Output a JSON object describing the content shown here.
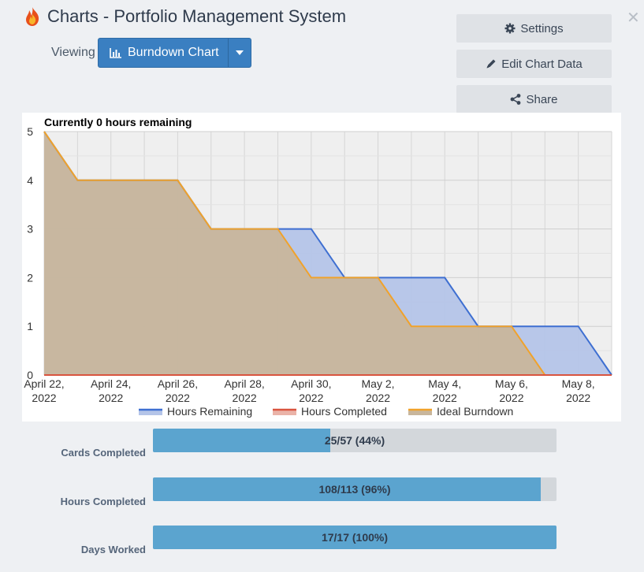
{
  "header": {
    "title": "Charts - Portfolio Management System",
    "viewing_label": "Viewing",
    "chart_select": "Burndown Chart"
  },
  "actions": {
    "settings": "Settings",
    "edit": "Edit Chart Data",
    "share": "Share"
  },
  "chart_data": {
    "type": "area",
    "title": "Currently 0 hours remaining",
    "x": [
      0,
      1,
      2,
      3,
      4,
      5,
      6,
      7,
      8,
      9,
      10,
      11,
      12,
      13,
      14,
      15,
      16,
      17
    ],
    "x_tick_labels": [
      {
        "at": 0,
        "line1": "April 22,",
        "line2": "2022"
      },
      {
        "at": 2,
        "line1": "April 24,",
        "line2": "2022"
      },
      {
        "at": 4,
        "line1": "April 26,",
        "line2": "2022"
      },
      {
        "at": 6,
        "line1": "April 28,",
        "line2": "2022"
      },
      {
        "at": 8,
        "line1": "April 30,",
        "line2": "2022"
      },
      {
        "at": 10,
        "line1": "May 2,",
        "line2": "2022"
      },
      {
        "at": 12,
        "line1": "May 4,",
        "line2": "2022"
      },
      {
        "at": 14,
        "line1": "May 6,",
        "line2": "2022"
      },
      {
        "at": 16,
        "line1": "May 8,",
        "line2": "2022"
      }
    ],
    "y_ticks": [
      0,
      1,
      2,
      3,
      4,
      5
    ],
    "ylim": [
      0,
      5
    ],
    "series": [
      {
        "name": "Hours Remaining",
        "color": "#3e6fd1",
        "fill": "#b4c4e8",
        "values": [
          5,
          4,
          4,
          4,
          4,
          3,
          3,
          3,
          3,
          2,
          2,
          2,
          2,
          1,
          1,
          1,
          1,
          0
        ]
      },
      {
        "name": "Hours Completed",
        "color": "#d9543f",
        "fill": "#eab3a8",
        "values": [
          0,
          0,
          0,
          0,
          0,
          0,
          0,
          0,
          0,
          0,
          0,
          0,
          0,
          0,
          0,
          0,
          0,
          0
        ]
      },
      {
        "name": "Ideal Burndown",
        "color": "#f0a22b",
        "fill": "#c8b69c",
        "values": [
          5,
          4,
          4,
          4,
          4,
          3,
          3,
          3,
          2,
          2,
          2,
          1,
          1,
          1,
          1,
          0,
          0,
          0
        ]
      }
    ],
    "legend_position": "bottom",
    "grid": true
  },
  "stats": [
    {
      "label": "Cards Completed",
      "text": "25/57 (44%)",
      "fraction": 0.44
    },
    {
      "label": "Hours Completed",
      "text": "108/113 (96%)",
      "fraction": 0.96
    },
    {
      "label": "Days Worked",
      "text": "17/17 (100%)",
      "fraction": 1.0
    }
  ]
}
